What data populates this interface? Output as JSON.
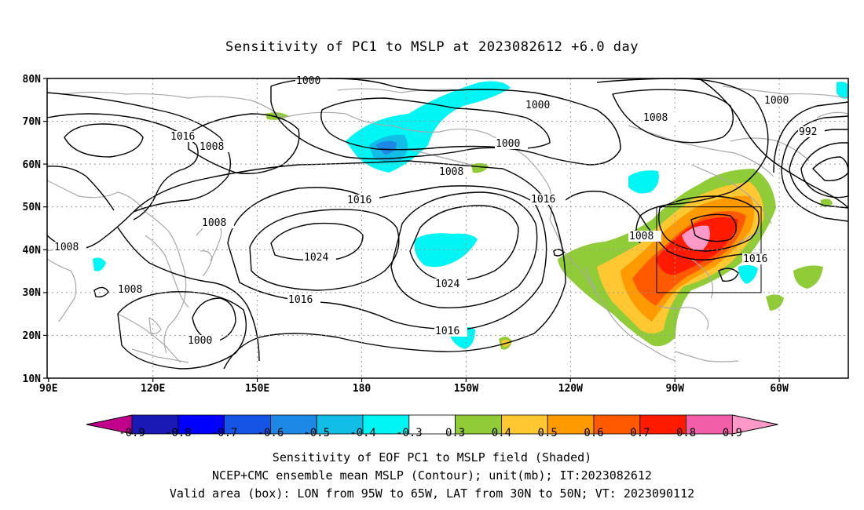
{
  "title": "Sensitivity of PC1 to MSLP at 2023082612 +6.0 day",
  "lat_labels": [
    "80N",
    "70N",
    "60N",
    "50N",
    "40N",
    "30N",
    "20N",
    "10N"
  ],
  "lon_labels": [
    "90E",
    "120E",
    "150E",
    "180",
    "150W",
    "120W",
    "90W",
    "60W"
  ],
  "colorbar": {
    "labels": [
      "-0.9",
      "-0.8",
      "-0.7",
      "-0.6",
      "-0.5",
      "-0.4",
      "-0.3",
      "0.3",
      "0.4",
      "0.5",
      "0.6",
      "0.7",
      "0.8",
      "0.9"
    ],
    "colors": [
      "#c0008a",
      "#1a19b5",
      "#0000ff",
      "#1654e6",
      "#1e88e6",
      "#12bde6",
      "#00f5f5",
      "#ffffff",
      "#8fcc37",
      "#ffc833",
      "#ff9a00",
      "#ff5a00",
      "#ff1a00",
      "#f25ea8",
      "#ff99c8"
    ]
  },
  "contour_labels": [
    "1000",
    "1000",
    "1000",
    "1000",
    "992",
    "1008",
    "1008",
    "1008",
    "1008",
    "1008",
    "1008",
    "1016",
    "1016",
    "1016",
    "1016",
    "1016",
    "1016",
    "1024",
    "1024",
    "1000"
  ],
  "footer": {
    "line1": "Sensitivity of EOF PC1 to MSLP field (Shaded)",
    "line2": "NCEP+CMC ensemble mean MSLP (Contour); unit(mb); IT:2023082612",
    "line3": "Valid area (box): LON from 95W to 65W, LAT from 30N to 50N; VT: 2023090112"
  }
}
